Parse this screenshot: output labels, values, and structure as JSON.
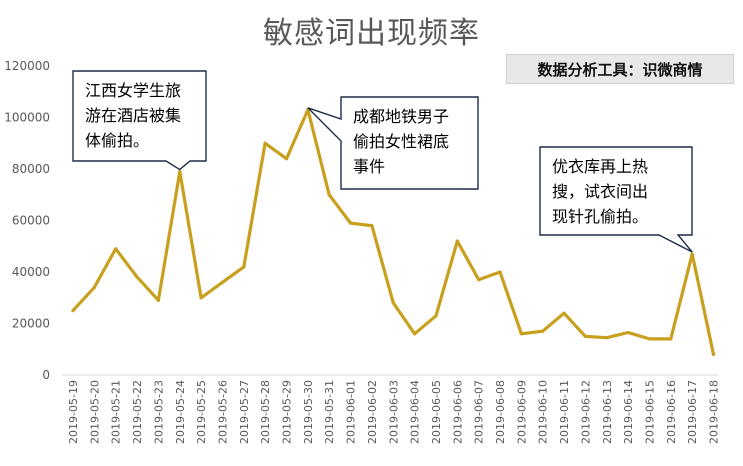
{
  "chart_data": {
    "type": "line",
    "title": "敏感词出现频率",
    "source_label": "数据分析工具：识微商情",
    "ylim": [
      0,
      120000
    ],
    "yticks": [
      0,
      20000,
      40000,
      60000,
      80000,
      100000,
      120000
    ],
    "grid": false,
    "line_color": "#c8a01e",
    "categories": [
      "2019-05-19",
      "2019-05-20",
      "2019-05-21",
      "2019-05-22",
      "2019-05-23",
      "2019-05-24",
      "2019-05-25",
      "2019-05-26",
      "2019-05-27",
      "2019-05-28",
      "2019-05-29",
      "2019-05-30",
      "2019-05-31",
      "2019-06-01",
      "2019-06-02",
      "2019-06-03",
      "2019-06-04",
      "2019-06-05",
      "2019-06-06",
      "2019-06-07",
      "2019-06-08",
      "2019-06-09",
      "2019-06-10",
      "2019-06-11",
      "2019-06-12",
      "2019-06-13",
      "2019-06-14",
      "2019-06-15",
      "2019-06-16",
      "2019-06-17",
      "2019-06-18"
    ],
    "values": [
      25000,
      34000,
      49000,
      38000,
      29000,
      79000,
      30000,
      36000,
      42000,
      90000,
      84000,
      103000,
      70000,
      59000,
      58000,
      28000,
      16000,
      23000,
      52000,
      37000,
      40000,
      16000,
      17000,
      24000,
      15000,
      14500,
      16500,
      14000,
      14000,
      47000,
      8000
    ],
    "annotations": [
      {
        "lines": [
          "江西女学生旅",
          "游在酒店被集",
          "体偷拍。"
        ],
        "category": "2019-05-24"
      },
      {
        "lines": [
          "成都地铁男子",
          "偷拍女性裙底",
          "事件"
        ],
        "category": "2019-05-30"
      },
      {
        "lines": [
          "优衣库再上热",
          "搜，试衣间出",
          "现针孔偷拍。"
        ],
        "category": "2019-06-17"
      }
    ]
  }
}
